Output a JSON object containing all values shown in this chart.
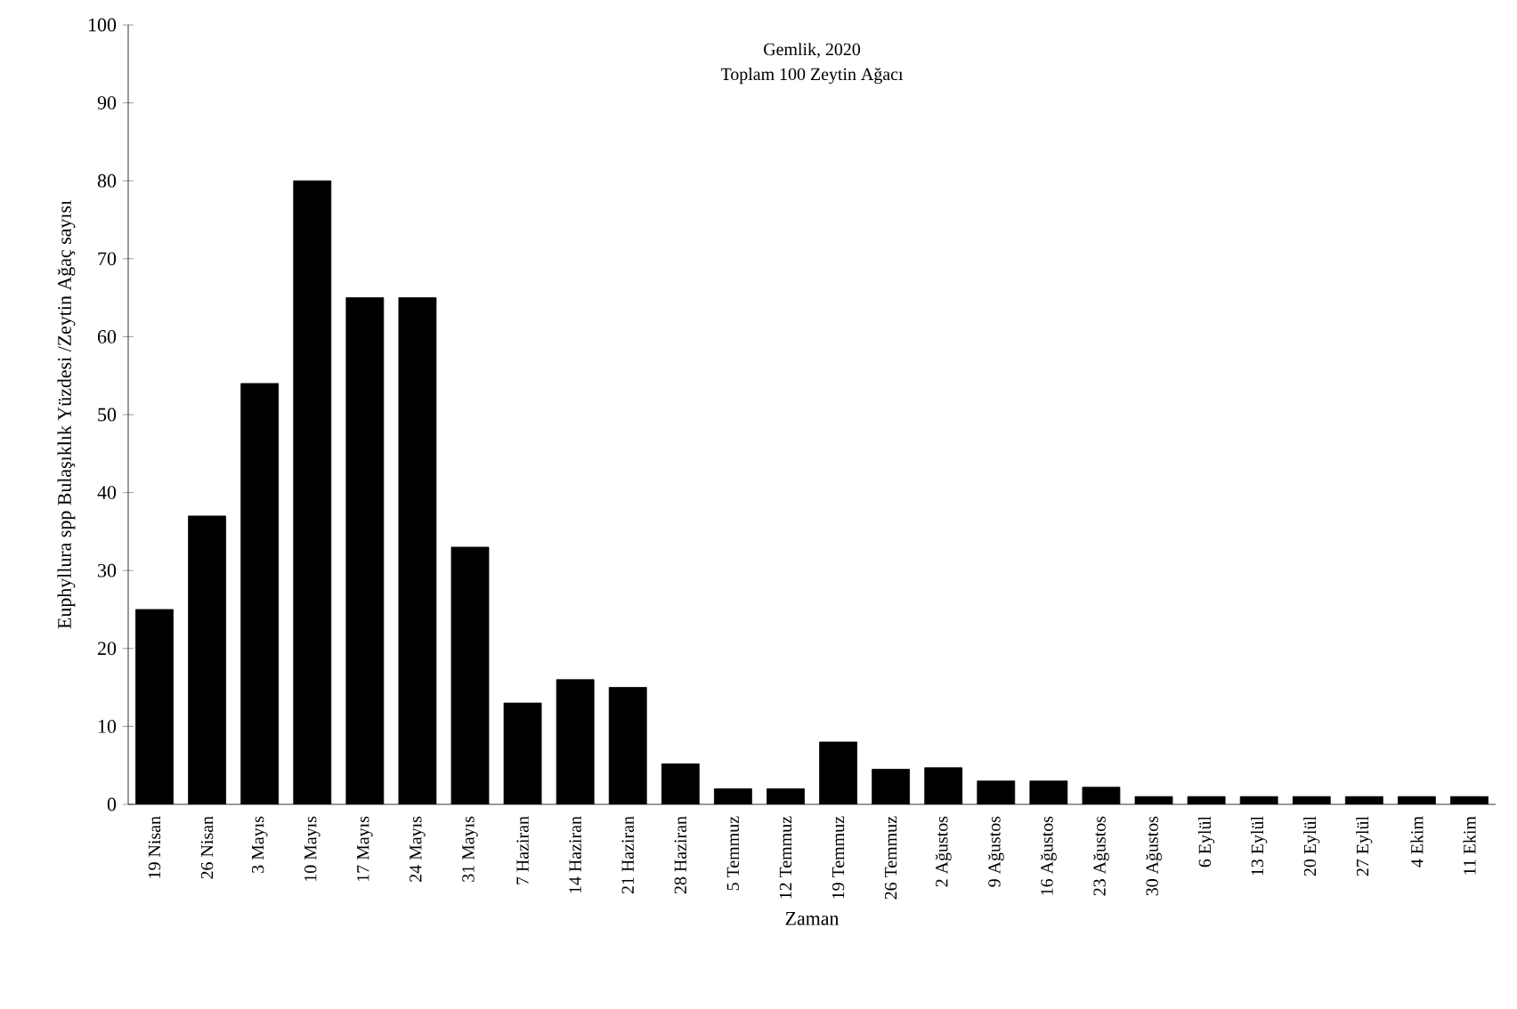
{
  "chart_data": {
    "type": "bar",
    "title": "Gemlik, 2020",
    "subtitle": "Toplam 100 Zeytin Ağacı",
    "xlabel": "Zaman",
    "ylabel": "Euphyllura spp Bulaşıklık Yüzdesi /Zeytin Ağaç sayısı",
    "categories": [
      "19 Nisan",
      "26 Nisan",
      "3 Mayıs",
      "10 Mayıs",
      "17 Mayıs",
      "24 Mayıs",
      "31 Mayıs",
      "7 Haziran",
      "14 Haziran",
      "21 Haziran",
      "28 Haziran",
      "5 Temmuz",
      "12 Temmuz",
      "19 Temmuz",
      "26 Temmuz",
      "2 Ağustos",
      "9 Ağustos",
      "16 Ağustos",
      "23 Ağustos",
      "30 Ağustos",
      "6 Eylül",
      "13 Eylül",
      "20 Eylül",
      "27 Eylül",
      "4 Ekim",
      "11 Ekim"
    ],
    "values": [
      25,
      37,
      54,
      80,
      65,
      65,
      33,
      13,
      16,
      15,
      5.2,
      2,
      2,
      8,
      4.5,
      4.7,
      3,
      3,
      2.2,
      1,
      1,
      1,
      1,
      1,
      1,
      1
    ],
    "color": "#000000",
    "ylim": [
      0,
      100
    ],
    "yticks": [
      0,
      10,
      20,
      30,
      40,
      50,
      60,
      70,
      80,
      90,
      100
    ],
    "grid": false,
    "legend": false
  }
}
